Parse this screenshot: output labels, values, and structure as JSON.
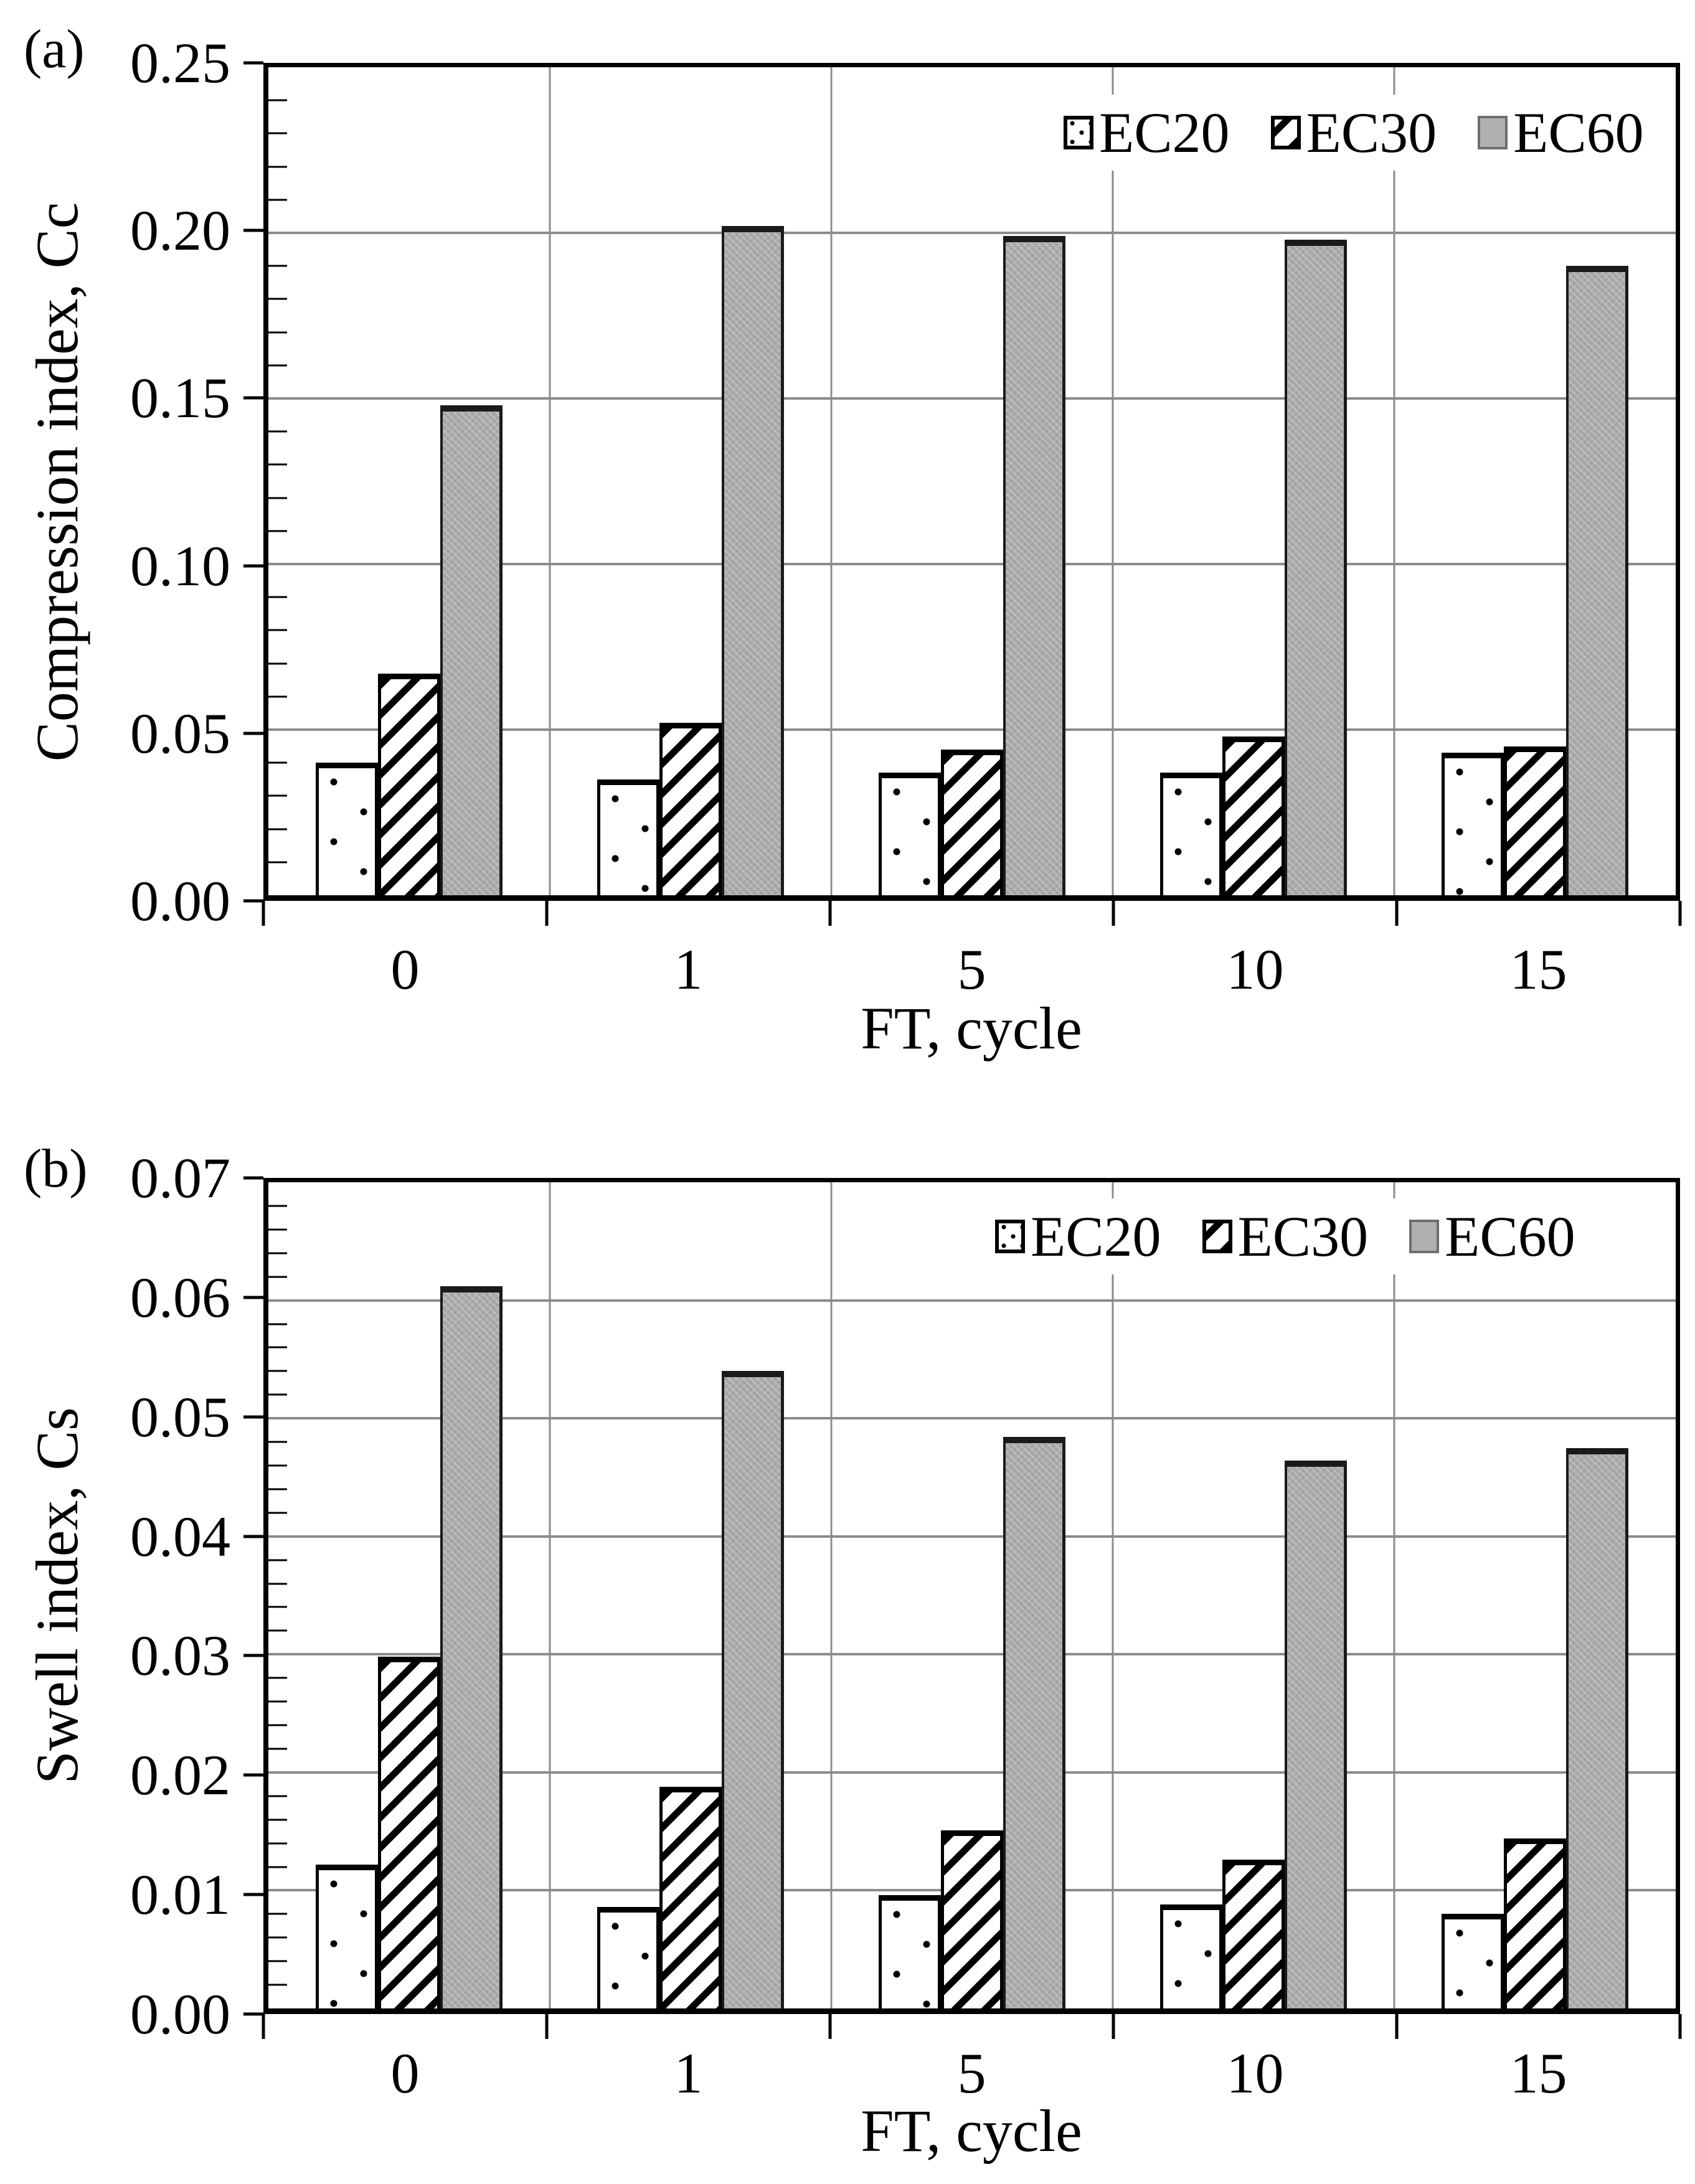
{
  "figure": {
    "x_title": "FT, cycle",
    "categories": [
      "0",
      "1",
      "5",
      "10",
      "15"
    ],
    "legend_labels": [
      "EC20",
      "EC30",
      "EC60"
    ],
    "colors": {
      "background": "#ffffff",
      "text": "#000000",
      "frame": "#000000",
      "gridline": "#8c8c8c",
      "ec60_gray": "#ababab"
    },
    "patterns": {
      "EC20": "white-with-black-dots",
      "EC30": "white-with-diagonal-hatch",
      "EC60": "solid-gray"
    }
  },
  "chart_data": [
    {
      "type": "bar",
      "panel_label": "(a)",
      "ylabel": "Compression index, Cc",
      "xlabel": "FT, cycle",
      "categories": [
        "0",
        "1",
        "5",
        "10",
        "15"
      ],
      "series": [
        {
          "name": "EC20",
          "values": [
            0.04,
            0.035,
            0.037,
            0.037,
            0.043
          ]
        },
        {
          "name": "EC30",
          "values": [
            0.067,
            0.052,
            0.044,
            0.048,
            0.045
          ]
        },
        {
          "name": "EC60",
          "values": [
            0.148,
            0.202,
            0.199,
            0.198,
            0.19
          ]
        }
      ],
      "ylim": [
        0,
        0.25
      ],
      "ytick_step": 0.05,
      "minor_tick_step": 0.01,
      "ytick_labels": [
        "0.00",
        "0.05",
        "0.10",
        "0.15",
        "0.20",
        "0.25"
      ],
      "grid": true,
      "legend_position": "top-right"
    },
    {
      "type": "bar",
      "panel_label": "(b)",
      "ylabel": "Swell index, Cs",
      "xlabel": "FT, cycle",
      "categories": [
        "0",
        "1",
        "5",
        "10",
        "15"
      ],
      "series": [
        {
          "name": "EC20",
          "values": [
            0.0122,
            0.0086,
            0.0096,
            0.0088,
            0.008
          ]
        },
        {
          "name": "EC30",
          "values": [
            0.0298,
            0.0188,
            0.0151,
            0.0126,
            0.0144
          ]
        },
        {
          "name": "EC60",
          "values": [
            0.0612,
            0.054,
            0.0484,
            0.0464,
            0.0475
          ]
        }
      ],
      "ylim": [
        0,
        0.07
      ],
      "ytick_step": 0.01,
      "minor_tick_step": 0.002,
      "ytick_labels": [
        "0.00",
        "0.01",
        "0.02",
        "0.03",
        "0.04",
        "0.05",
        "0.06",
        "0.07"
      ],
      "grid": true,
      "legend_position": "top-right"
    }
  ]
}
